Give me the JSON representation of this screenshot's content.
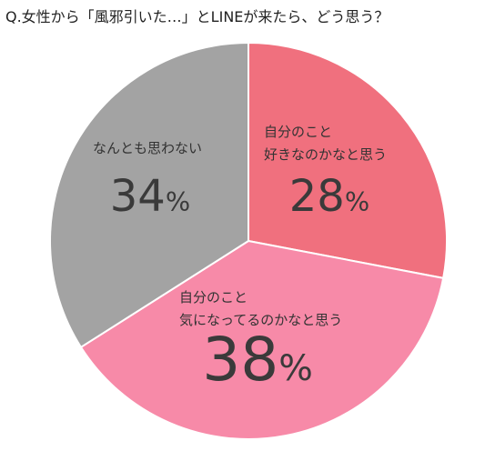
{
  "chart_data": {
    "type": "pie",
    "title": "Q.女性から「風邪引いた…」とLINEが来たら、どう思う？",
    "categories": [
      "自分のこと\n好きなのかなと思う",
      "自分のこと\n気になってるのかなと思う",
      "なんとも思わない"
    ],
    "values": [
      28,
      38,
      34
    ],
    "value_labels": [
      "28%",
      "38%",
      "34%"
    ],
    "colors": [
      "#f0707e",
      "#f78aa8",
      "#a3a3a3"
    ]
  }
}
